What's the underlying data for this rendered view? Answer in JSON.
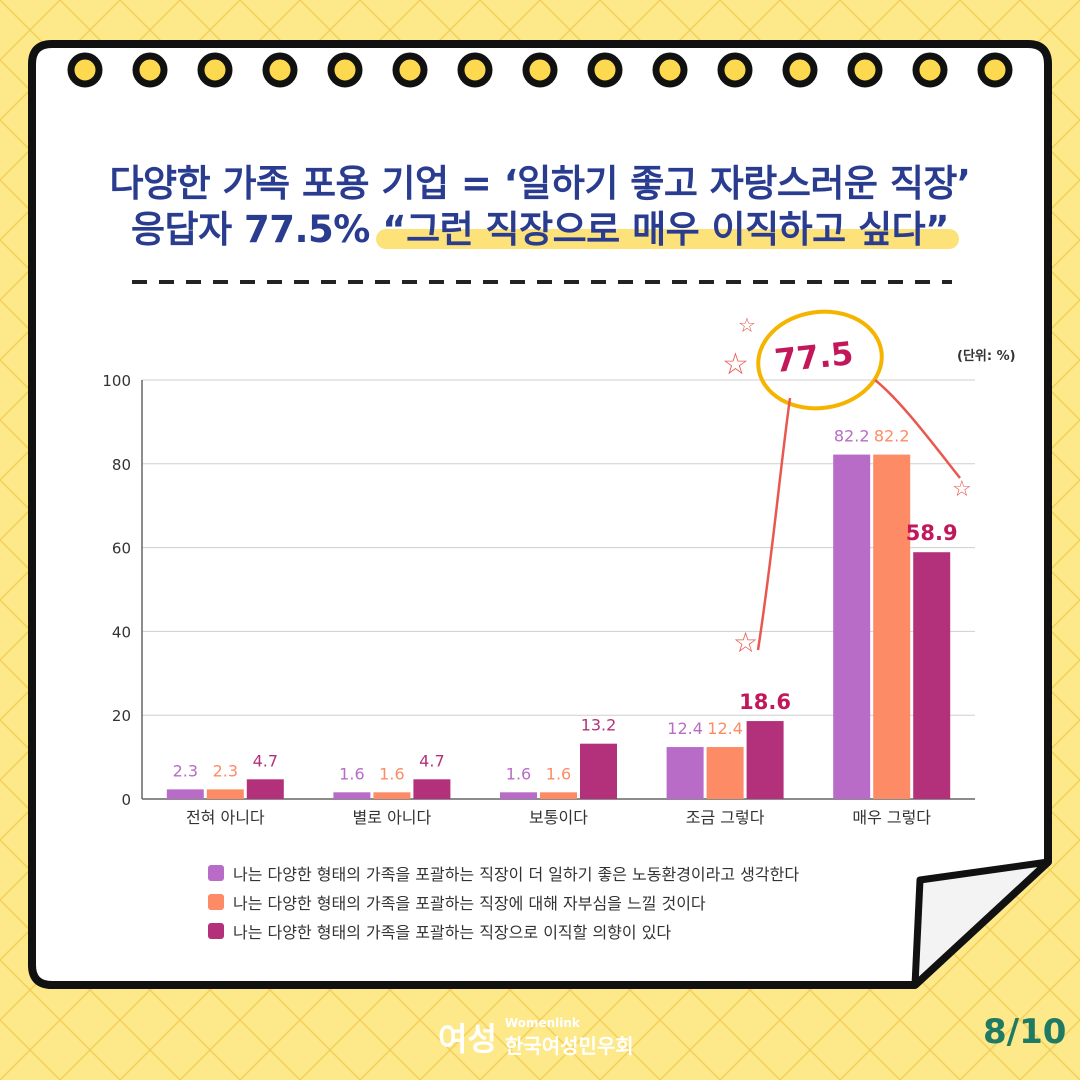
{
  "title": {
    "line1": "다양한 가족 포용 기업 = ‘일하기 좋고 자랑스러운 직장’",
    "line2_prefix": "응답자 77.5% ",
    "line2_highlight": "“그런 직장으로 매우 이직하고 싶다”"
  },
  "unit_label": "(단위: %)",
  "annotation": "77.5",
  "chart_data": {
    "type": "bar",
    "categories": [
      "전혀 아니다",
      "별로 아니다",
      "보통이다",
      "조금 그렇다",
      "매우 그렇다"
    ],
    "series": [
      {
        "name": "나는 다양한 형태의 가족을 포괄하는 직장이 더 일하기 좋은 노동환경이라고 생각한다",
        "values": [
          2.3,
          1.6,
          1.6,
          12.4,
          82.2
        ],
        "color": "#b86cc7"
      },
      {
        "name": "나는 다양한 형태의 가족을 포괄하는 직장에 대해 자부심을 느낄 것이다",
        "values": [
          2.3,
          1.6,
          1.6,
          12.4,
          82.2
        ],
        "color": "#fd8c66"
      },
      {
        "name": "나는 다양한 형태의 가족을 포괄하는 직장으로 이직할 의향이 있다",
        "values": [
          4.7,
          4.7,
          13.2,
          18.6,
          58.9
        ],
        "color": "#b3317a"
      }
    ],
    "yticks": [
      "0",
      "20",
      "40",
      "60",
      "80",
      "100"
    ],
    "ylim": [
      0,
      100
    ],
    "grid": true,
    "legend_position": "bottom"
  },
  "footer": {
    "logo_mark": "여성",
    "logo_en": "Womenlink",
    "logo_ko": "한국여성민우회",
    "page": "8/10"
  },
  "colors": {
    "background": "#fde88a",
    "title": "#2a3c8f",
    "highlight": "#fde27a",
    "page_number": "#1f7a64",
    "annotation_circle": "#f5b400",
    "annotation_line": "#e8584f"
  }
}
